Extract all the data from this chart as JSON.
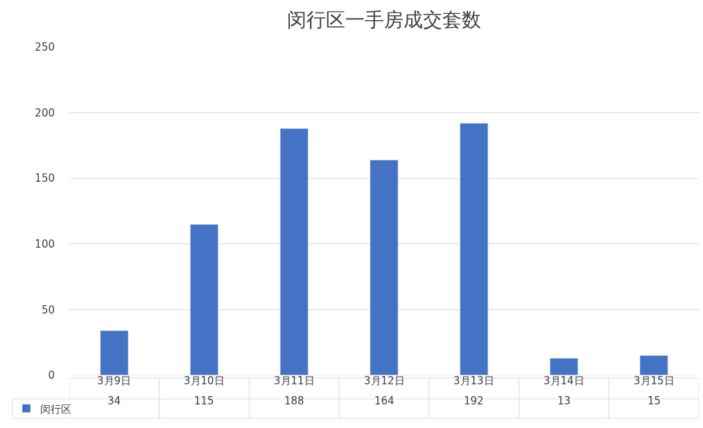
{
  "chart_data": {
    "type": "bar",
    "title": "闵行区一手房成交套数",
    "categories": [
      "3月9日",
      "3月10日",
      "3月11日",
      "3月12日",
      "3月13日",
      "3月14日",
      "3月15日"
    ],
    "series": [
      {
        "name": "闵行区",
        "color": "#4472c4",
        "values": [
          34,
          115,
          188,
          164,
          192,
          13,
          15
        ]
      }
    ],
    "ylim": [
      0,
      250
    ],
    "yticks": [
      0,
      50,
      100,
      150,
      200,
      250
    ],
    "grid": "y",
    "legend": "bottom",
    "data_labels": true
  }
}
